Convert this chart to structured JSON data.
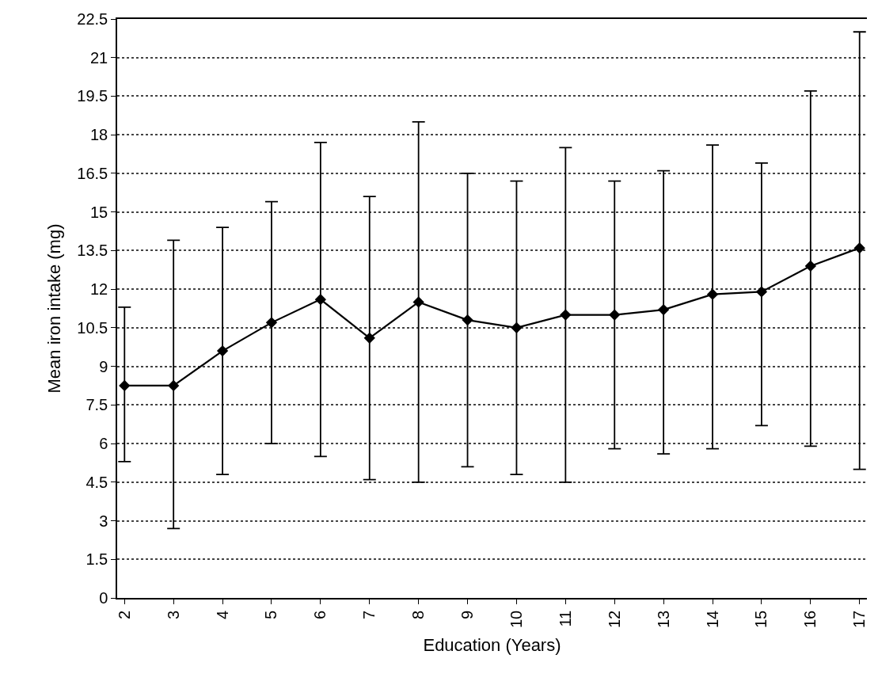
{
  "chart_data": {
    "type": "line",
    "xlabel": "Education (Years)",
    "ylabel": "Mean iron intake (mg)",
    "x": [
      2,
      3,
      4,
      5,
      6,
      7,
      8,
      9,
      10,
      11,
      12,
      13,
      14,
      15,
      16,
      17
    ],
    "values": [
      8.25,
      8.25,
      9.6,
      10.7,
      11.6,
      10.1,
      11.5,
      10.8,
      10.5,
      11.0,
      11.0,
      11.2,
      11.8,
      11.9,
      12.9,
      13.6
    ],
    "errors": [
      [
        5.3,
        11.3
      ],
      [
        2.7,
        13.9
      ],
      [
        4.8,
        14.4
      ],
      [
        6.0,
        15.4
      ],
      [
        5.5,
        17.7
      ],
      [
        4.6,
        15.6
      ],
      [
        4.5,
        18.5
      ],
      [
        5.1,
        16.5
      ],
      [
        4.8,
        16.2
      ],
      [
        4.5,
        17.5
      ],
      [
        5.8,
        16.2
      ],
      [
        5.6,
        16.6
      ],
      [
        5.8,
        17.6
      ],
      [
        6.7,
        16.9
      ],
      [
        5.9,
        19.7
      ],
      [
        5.0,
        22.0
      ]
    ],
    "color": "#000000",
    "xlim": [
      1.85,
      17.15
    ],
    "xticks": [
      2,
      3,
      4,
      5,
      6,
      7,
      8,
      9,
      10,
      11,
      12,
      13,
      14,
      15,
      16,
      17
    ],
    "ylim": [
      0,
      22.5
    ],
    "yticks": [
      0,
      1.5,
      3,
      4.5,
      6,
      7.5,
      9,
      10.5,
      12,
      13.5,
      15,
      16.5,
      18,
      19.5,
      21,
      22.5
    ],
    "grid": "y",
    "marker": "diamond",
    "line_style": "solid"
  }
}
